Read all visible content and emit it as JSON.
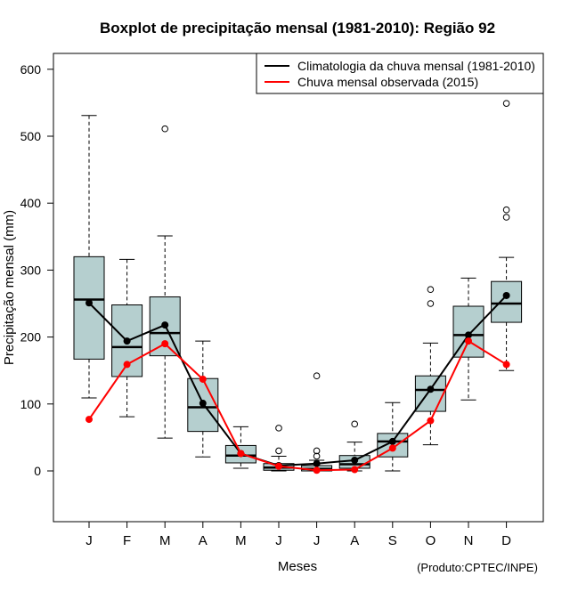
{
  "chart_data": {
    "type": "boxplot",
    "title": "Boxplot de precipitação mensal (1981-2010): Região 92",
    "xlabel": "Meses",
    "ylabel": "Precipitação mensal (mm)",
    "credit": "(Produto:CPTEC/INPE)",
    "ylim": [
      -76,
      624
    ],
    "yticks": [
      0,
      100,
      200,
      300,
      400,
      500,
      600
    ],
    "categories": [
      "J",
      "F",
      "M",
      "A",
      "M",
      "J",
      "J",
      "A",
      "S",
      "O",
      "N",
      "D"
    ],
    "boxes": [
      {
        "low": 109,
        "q1": 167,
        "median": 256,
        "q3": 320,
        "high": 531,
        "outliers": []
      },
      {
        "low": 81,
        "q1": 141,
        "median": 185,
        "q3": 248,
        "high": 316,
        "outliers": []
      },
      {
        "low": 49,
        "q1": 172,
        "median": 206,
        "q3": 260,
        "high": 351,
        "outliers": [
          511
        ]
      },
      {
        "low": 21,
        "q1": 59,
        "median": 95,
        "q3": 138,
        "high": 194,
        "outliers": []
      },
      {
        "low": 4,
        "q1": 12,
        "median": 23,
        "q3": 38,
        "high": 66,
        "outliers": []
      },
      {
        "low": 0,
        "q1": 1,
        "median": 5,
        "q3": 11,
        "high": 22,
        "outliers": [
          30,
          64
        ]
      },
      {
        "low": 0,
        "q1": 0,
        "median": 3,
        "q3": 8,
        "high": 16,
        "outliers": [
          22,
          30,
          142
        ]
      },
      {
        "low": 0,
        "q1": 4,
        "median": 10,
        "q3": 23,
        "high": 43,
        "outliers": [
          70
        ]
      },
      {
        "low": 0,
        "q1": 21,
        "median": 44,
        "q3": 56,
        "high": 102,
        "outliers": []
      },
      {
        "low": 39,
        "q1": 89,
        "median": 121,
        "q3": 142,
        "high": 191,
        "outliers": [
          250,
          271
        ]
      },
      {
        "low": 106,
        "q1": 170,
        "median": 203,
        "q3": 246,
        "high": 288,
        "outliers": []
      },
      {
        "low": 150,
        "q1": 222,
        "median": 250,
        "q3": 283,
        "high": 319,
        "outliers": [
          379,
          390,
          549
        ]
      }
    ],
    "series": [
      {
        "name": "Climatologia da chuva mensal (1981-2010)",
        "color": "#000000",
        "values": [
          251,
          194,
          218,
          101,
          26,
          8,
          11,
          16,
          44,
          122,
          203,
          262
        ]
      },
      {
        "name": "Chuva mensal observada (2015)",
        "color": "#ff0000",
        "values": [
          77,
          159,
          190,
          137,
          26,
          7,
          1,
          2,
          34,
          75,
          194,
          159
        ]
      }
    ],
    "box_fill": "#b5cfcf",
    "legend_position": "top-right",
    "grid": false
  }
}
